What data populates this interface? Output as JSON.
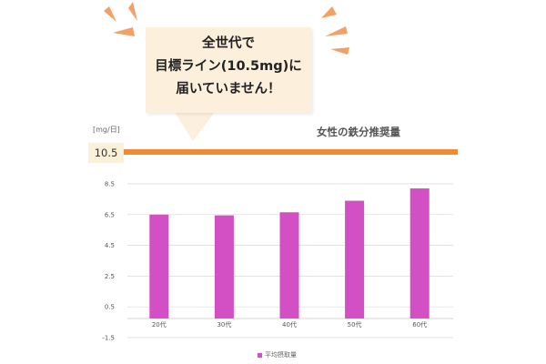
{
  "callout": {
    "lines": [
      "全世代で",
      "目標ライン(10.5mg)に",
      "届いていません！"
    ]
  },
  "reference": {
    "unit": "[mg/日]",
    "value_label": "10.5",
    "series_label": "女性の鉄分推奨量",
    "color": "#ef8a35"
  },
  "chart_data": {
    "type": "bar",
    "categories": [
      "20代",
      "30代",
      "40代",
      "50代",
      "60代"
    ],
    "series": [
      {
        "name": "平均摂取量",
        "values": [
          6.5,
          6.45,
          6.65,
          7.4,
          8.2
        ],
        "color": "#d24fc4"
      }
    ],
    "reference_line": {
      "value": 10.5,
      "label": "女性の鉄分推奨量"
    },
    "ylabel": "[mg/日]",
    "yticks": [
      8.5,
      6.5,
      4.5,
      2.5,
      0.5,
      -1.5
    ],
    "ylim": [
      -1.5,
      8.5
    ],
    "grid": true,
    "legend": "bottom"
  },
  "legend": {
    "label": "平均摂取量"
  }
}
